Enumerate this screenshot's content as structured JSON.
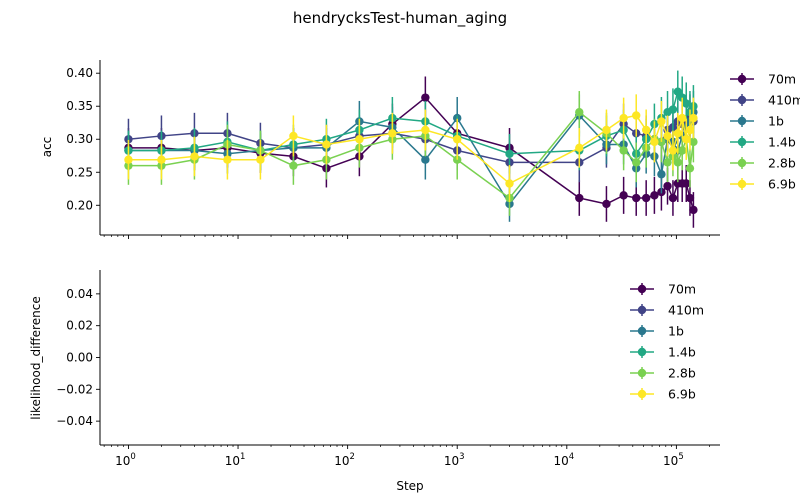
{
  "title": "hendrycksTest-human_aging",
  "colors": {
    "70m": "#440154",
    "410m": "#414487",
    "1b": "#2a788e",
    "1.4b": "#22a884",
    "2.8b": "#7ad151",
    "6.9b": "#fde725"
  },
  "x_ticks": [
    {
      "value": 1,
      "base": "10",
      "exp": "0"
    },
    {
      "value": 10,
      "base": "10",
      "exp": "1"
    },
    {
      "value": 100,
      "base": "10",
      "exp": "2"
    },
    {
      "value": 1000,
      "base": "10",
      "exp": "3"
    },
    {
      "value": 10000,
      "base": "10",
      "exp": "4"
    },
    {
      "value": 100000,
      "base": "10",
      "exp": "5"
    }
  ],
  "chart_data": [
    {
      "type": "line",
      "subplot": "top",
      "xlabel": "",
      "ylabel": "acc",
      "xscale": "log",
      "xlim": [
        0.55,
        250000
      ],
      "ylim": [
        0.155,
        0.42
      ],
      "yticks": [
        "0.20",
        "0.25",
        "0.30",
        "0.35",
        "0.40"
      ],
      "legend_placement": "outside-right",
      "series": [
        {
          "name": "70m",
          "x": [
            1,
            2,
            4,
            8,
            16,
            32,
            64,
            128,
            256,
            512,
            1000,
            3000,
            13000,
            23000,
            33000,
            43000,
            53000,
            63000,
            73000,
            83000,
            93000,
            103000,
            113000,
            123000,
            133000,
            143000
          ],
          "y": [
            0.287,
            0.287,
            0.283,
            0.287,
            0.279,
            0.274,
            0.256,
            0.274,
            0.323,
            0.363,
            0.309,
            0.287,
            0.211,
            0.202,
            0.215,
            0.211,
            0.211,
            0.215,
            0.22,
            0.229,
            0.211,
            0.233,
            0.233,
            0.233,
            0.211,
            0.193
          ],
          "err": [
            0.03,
            0.03,
            0.03,
            0.03,
            0.03,
            0.03,
            0.029,
            0.03,
            0.031,
            0.032,
            0.031,
            0.03,
            0.027,
            0.027,
            0.028,
            0.027,
            0.027,
            0.028,
            0.028,
            0.028,
            0.027,
            0.028,
            0.028,
            0.028,
            0.027,
            0.027
          ]
        },
        {
          "name": "410m",
          "x": [
            1,
            2,
            4,
            8,
            16,
            32,
            64,
            128,
            256,
            512,
            1000,
            3000,
            13000,
            23000,
            33000,
            43000,
            53000,
            63000,
            73000,
            83000,
            93000,
            103000,
            113000,
            123000,
            133000,
            143000
          ],
          "y": [
            0.3,
            0.305,
            0.309,
            0.309,
            0.294,
            0.287,
            0.292,
            0.305,
            0.309,
            0.3,
            0.283,
            0.265,
            0.265,
            0.287,
            0.323,
            0.309,
            0.305,
            0.3,
            0.296,
            0.314,
            0.318,
            0.327,
            0.323,
            0.318,
            0.336,
            0.327
          ],
          "err": [
            0.031,
            0.031,
            0.031,
            0.031,
            0.031,
            0.03,
            0.03,
            0.031,
            0.031,
            0.031,
            0.03,
            0.03,
            0.03,
            0.03,
            0.031,
            0.031,
            0.031,
            0.031,
            0.031,
            0.031,
            0.031,
            0.031,
            0.031,
            0.031,
            0.032,
            0.031
          ]
        },
        {
          "name": "1b",
          "x": [
            1,
            2,
            4,
            8,
            16,
            32,
            64,
            128,
            256,
            512,
            1000,
            3000,
            13000,
            23000,
            33000,
            43000,
            53000,
            63000,
            73000,
            83000,
            93000,
            103000,
            113000,
            123000,
            133000,
            143000
          ],
          "y": [
            0.283,
            0.283,
            0.283,
            0.278,
            0.283,
            0.287,
            0.287,
            0.327,
            0.318,
            0.269,
            0.332,
            0.202,
            0.336,
            0.292,
            0.292,
            0.256,
            0.278,
            0.274,
            0.247,
            0.3,
            0.296,
            0.283,
            0.305,
            0.318,
            0.327,
            0.341
          ],
          "err": [
            0.03,
            0.03,
            0.03,
            0.03,
            0.03,
            0.03,
            0.03,
            0.031,
            0.031,
            0.03,
            0.032,
            0.027,
            0.032,
            0.03,
            0.03,
            0.029,
            0.03,
            0.03,
            0.029,
            0.031,
            0.031,
            0.03,
            0.031,
            0.031,
            0.031,
            0.032
          ]
        },
        {
          "name": "1.4b",
          "x": [
            1,
            2,
            4,
            8,
            16,
            32,
            64,
            128,
            256,
            512,
            1000,
            3000,
            13000,
            23000,
            33000,
            43000,
            53000,
            63000,
            73000,
            83000,
            93000,
            103000,
            113000,
            123000,
            133000,
            143000
          ],
          "y": [
            0.283,
            0.283,
            0.287,
            0.296,
            0.283,
            0.292,
            0.3,
            0.314,
            0.332,
            0.327,
            0.305,
            0.278,
            0.283,
            0.305,
            0.314,
            0.278,
            0.3,
            0.323,
            0.332,
            0.341,
            0.345,
            0.372,
            0.363,
            0.354,
            0.341,
            0.35
          ],
          "err": [
            0.03,
            0.03,
            0.03,
            0.031,
            0.03,
            0.03,
            0.031,
            0.031,
            0.032,
            0.031,
            0.031,
            0.03,
            0.03,
            0.031,
            0.031,
            0.03,
            0.031,
            0.031,
            0.032,
            0.032,
            0.032,
            0.032,
            0.032,
            0.032,
            0.032,
            0.032
          ]
        },
        {
          "name": "2.8b",
          "x": [
            1,
            2,
            4,
            8,
            16,
            32,
            64,
            128,
            256,
            512,
            1000,
            3000,
            13000,
            23000,
            33000,
            43000,
            53000,
            63000,
            73000,
            83000,
            93000,
            103000,
            113000,
            123000,
            133000,
            143000
          ],
          "y": [
            0.26,
            0.26,
            0.269,
            0.292,
            0.283,
            0.26,
            0.269,
            0.287,
            0.3,
            0.305,
            0.269,
            0.211,
            0.341,
            0.309,
            0.283,
            0.265,
            0.287,
            0.3,
            0.296,
            0.265,
            0.274,
            0.265,
            0.283,
            0.3,
            0.256,
            0.296
          ],
          "err": [
            0.029,
            0.029,
            0.03,
            0.03,
            0.03,
            0.029,
            0.03,
            0.03,
            0.031,
            0.031,
            0.03,
            0.027,
            0.032,
            0.031,
            0.03,
            0.03,
            0.03,
            0.031,
            0.031,
            0.03,
            0.03,
            0.03,
            0.03,
            0.031,
            0.029,
            0.031
          ]
        },
        {
          "name": "6.9b",
          "x": [
            1,
            2,
            4,
            8,
            16,
            32,
            64,
            128,
            256,
            512,
            1000,
            3000,
            13000,
            23000,
            33000,
            43000,
            53000,
            63000,
            73000,
            83000,
            93000,
            103000,
            113000,
            123000,
            133000,
            143000
          ],
          "y": [
            0.269,
            0.269,
            0.274,
            0.269,
            0.269,
            0.305,
            0.292,
            0.3,
            0.309,
            0.314,
            0.3,
            0.233,
            0.287,
            0.314,
            0.332,
            0.336,
            0.314,
            0.296,
            0.327,
            0.305,
            0.283,
            0.309,
            0.332,
            0.3,
            0.314,
            0.332
          ],
          "err": [
            0.03,
            0.03,
            0.03,
            0.03,
            0.03,
            0.031,
            0.03,
            0.031,
            0.031,
            0.031,
            0.031,
            0.028,
            0.03,
            0.031,
            0.031,
            0.032,
            0.031,
            0.031,
            0.031,
            0.031,
            0.03,
            0.031,
            0.031,
            0.031,
            0.031,
            0.031
          ]
        }
      ]
    },
    {
      "type": "line",
      "subplot": "bottom",
      "xlabel": "Step",
      "ylabel": "likelihood_difference",
      "xscale": "log",
      "xlim": [
        0.55,
        250000
      ],
      "ylim": [
        -0.055,
        0.055
      ],
      "yticks": [
        "−0.04",
        "−0.02",
        "0.00",
        "0.02",
        "0.04"
      ],
      "legend_placement": "upper-right",
      "series": [
        {
          "name": "70m",
          "x": [],
          "y": []
        },
        {
          "name": "410m",
          "x": [],
          "y": []
        },
        {
          "name": "1b",
          "x": [],
          "y": []
        },
        {
          "name": "1.4b",
          "x": [],
          "y": []
        },
        {
          "name": "2.8b",
          "x": [],
          "y": []
        },
        {
          "name": "6.9b",
          "x": [],
          "y": []
        }
      ]
    }
  ]
}
